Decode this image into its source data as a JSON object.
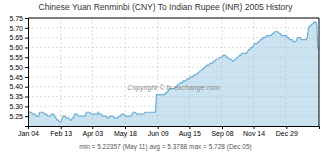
{
  "chart_data": {
    "type": "area",
    "title": "Chinese Yuan Renminbi (CNY) To Indian Rupee (INR) 2005 History",
    "annotations": [
      "Copyright © fx-exchange.com",
      "min = 5.22357 (May 11)   avg = 5.3788   max = 5.728 (Dec 05)"
    ],
    "color": "#6aafd4",
    "grid": true,
    "ylim": [
      5.2,
      5.75
    ],
    "yticks": [
      5.25,
      {
        "value": 5.3,
        "label": "5.30"
      },
      5.35,
      {
        "value": 5.4,
        "label": "5.40"
      },
      5.45,
      {
        "value": 5.5,
        "label": "5.50"
      },
      5.55,
      {
        "value": 5.6,
        "label": "5.60"
      },
      5.65,
      {
        "value": 5.7,
        "label": "5.70"
      },
      5.75
    ],
    "categories": [
      "Jan 04",
      null,
      null,
      null,
      null,
      null,
      null,
      null,
      null,
      null,
      null,
      null,
      null,
      null,
      null,
      null,
      null,
      null,
      null,
      null,
      null,
      null,
      null,
      null,
      null,
      null,
      null,
      null,
      "Feb 13",
      null,
      null,
      null,
      null,
      null,
      null,
      null,
      null,
      null,
      null,
      null,
      null,
      null,
      null,
      null,
      null,
      null,
      null,
      null,
      null,
      null,
      null,
      null,
      null,
      null,
      null,
      "Apr 03",
      null,
      null,
      null,
      null,
      null,
      null,
      null,
      null,
      null,
      null,
      null,
      null,
      null,
      null,
      null,
      null,
      null,
      null,
      null,
      null,
      null,
      null,
      null,
      null,
      null,
      null,
      null,
      "May 18",
      null,
      null,
      null,
      null,
      null,
      null,
      null,
      null,
      null,
      null,
      null,
      null,
      null,
      null,
      null,
      null,
      null,
      null,
      null,
      null,
      null,
      null,
      null,
      null,
      null,
      null,
      null,
      "Jun 09",
      null,
      null,
      null,
      null,
      null,
      null,
      null,
      null,
      null,
      null,
      null,
      null,
      null,
      null,
      null,
      null,
      null,
      null,
      null,
      null,
      null,
      null,
      null,
      null,
      null,
      null,
      "Aug 15",
      null,
      null,
      null,
      null,
      null,
      null,
      null,
      null,
      null,
      null,
      null,
      null,
      null,
      null,
      null,
      null,
      null,
      null,
      null,
      null,
      null,
      null,
      null,
      null,
      null,
      null,
      null,
      "Sep 08",
      null,
      null,
      null,
      null,
      null,
      null,
      null,
      null,
      null,
      null,
      null,
      null,
      null,
      null,
      null,
      null,
      null,
      null,
      null,
      null,
      null,
      null,
      null,
      null,
      null,
      null,
      "Nov 14",
      null,
      null,
      null,
      null,
      null,
      null,
      null,
      null,
      null,
      null,
      null,
      null,
      null,
      null,
      null,
      null,
      null,
      null,
      null,
      null,
      null,
      null,
      null,
      null,
      null,
      null,
      null,
      "Dec 29",
      null,
      null,
      null,
      null,
      null,
      null,
      null,
      null,
      null,
      null,
      null,
      null,
      null,
      null,
      null,
      null,
      null,
      null,
      null,
      null,
      null,
      null,
      null,
      null,
      null,
      null,
      null,
      null
    ],
    "values": [
      5.28,
      5.27,
      5.27,
      5.27,
      5.26,
      5.26,
      5.26,
      5.25,
      5.25,
      5.25,
      5.27,
      5.27,
      5.27,
      5.27,
      5.26,
      5.26,
      5.26,
      5.25,
      5.25,
      5.25,
      5.26,
      5.26,
      5.26,
      5.25,
      5.24,
      5.23,
      5.23,
      5.22,
      5.22,
      5.23,
      5.25,
      5.25,
      5.25,
      5.24,
      5.24,
      5.24,
      5.23,
      5.23,
      5.24,
      5.24,
      5.26,
      5.26,
      5.26,
      5.25,
      5.25,
      5.25,
      5.25,
      5.25,
      5.25,
      5.25,
      5.27,
      5.27,
      5.27,
      5.27,
      5.26,
      5.26,
      5.26,
      5.26,
      5.26,
      5.26,
      5.27,
      5.26,
      5.26,
      5.26,
      5.25,
      5.25,
      5.25,
      5.25,
      5.24,
      5.24,
      5.25,
      5.25,
      5.25,
      5.25,
      5.24,
      5.24,
      5.24,
      5.24,
      5.25,
      5.25,
      5.26,
      5.26,
      5.26,
      5.25,
      5.25,
      5.25,
      5.25,
      5.25,
      5.25,
      5.26,
      5.27,
      5.27,
      5.27,
      5.26,
      5.26,
      5.26,
      5.26,
      5.26,
      5.26,
      5.26,
      5.27,
      5.27,
      5.27,
      5.27,
      5.27,
      5.27,
      5.27,
      5.27,
      5.27,
      5.27,
      5.36,
      5.36,
      5.36,
      5.36,
      5.36,
      5.36,
      5.36,
      5.36,
      5.37,
      5.37,
      5.38,
      5.39,
      5.39,
      5.39,
      5.39,
      5.39,
      5.4,
      5.4,
      5.41,
      5.41,
      5.42,
      5.42,
      5.42,
      5.43,
      5.43,
      5.43,
      5.44,
      5.44,
      5.44,
      5.45,
      5.45,
      5.45,
      5.46,
      5.46,
      5.46,
      5.47,
      5.47,
      5.48,
      5.48,
      5.49,
      5.49,
      5.5,
      5.5,
      5.51,
      5.51,
      5.51,
      5.52,
      5.52,
      5.52,
      5.53,
      5.53,
      5.54,
      5.54,
      5.54,
      5.55,
      5.55,
      5.55,
      5.56,
      5.56,
      5.56,
      5.55,
      5.55,
      5.54,
      5.54,
      5.54,
      5.53,
      5.53,
      5.54,
      5.54,
      5.55,
      5.55,
      5.56,
      5.56,
      5.57,
      5.57,
      5.57,
      5.57,
      5.57,
      5.58,
      5.59,
      5.59,
      5.6,
      5.6,
      5.61,
      5.62,
      5.62,
      5.62,
      5.63,
      5.63,
      5.64,
      5.64,
      5.65,
      5.65,
      5.65,
      5.66,
      5.66,
      5.66,
      5.66,
      5.66,
      5.67,
      5.67,
      5.68,
      5.68,
      5.68,
      5.68,
      5.67,
      5.67,
      5.66,
      5.66,
      5.66,
      5.66,
      5.66,
      5.65,
      5.65,
      5.64,
      5.64,
      5.64,
      5.63,
      5.63,
      5.63,
      5.64,
      5.65,
      5.65,
      5.65,
      5.64,
      5.64,
      5.64,
      5.64,
      5.64,
      5.65,
      5.7,
      5.71,
      5.71,
      5.72,
      5.72,
      5.73,
      5.73,
      5.72,
      5.6,
      5.59
    ]
  }
}
